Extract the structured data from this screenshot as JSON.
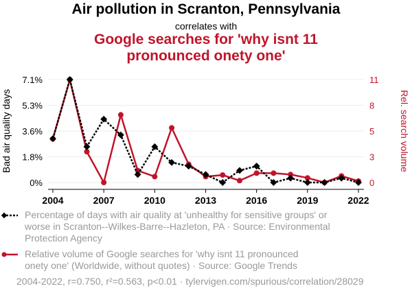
{
  "chart_data": {
    "type": "line",
    "title": "Air pollution in Scranton, Pennsylvania",
    "subtitle": "correlates with",
    "title2": "Google searches for 'why isnt 11 pronounced onety one'",
    "x": [
      2004,
      2005,
      2006,
      2007,
      2008,
      2009,
      2010,
      2011,
      2012,
      2013,
      2014,
      2015,
      2016,
      2017,
      2018,
      2019,
      2020,
      2021,
      2022
    ],
    "x_ticks": [
      "2004",
      "2007",
      "2010",
      "2013",
      "2016",
      "2019",
      "2022"
    ],
    "ylabel_left": "Bad air quality days",
    "ylabel_right": "Rel. search volume",
    "yticks_left": [
      "7.1%",
      "5.3%",
      "3.6%",
      "1.8%",
      "0%"
    ],
    "yticks_right": [
      "11",
      "8",
      "5",
      "3",
      "0"
    ],
    "ylim_left": [
      0,
      7.1
    ],
    "ylim_right": [
      0,
      11
    ],
    "grid": true,
    "series": [
      {
        "name": "Percentage of days with air quality at 'unhealthy for sensitive groups' or worse in Scranton--Wilkes-Barre--Hazleton, PA · Source: Environmental Protection Agency",
        "axis": "left",
        "color": "#000000",
        "values": [
          3.02,
          7.1,
          2.47,
          4.37,
          3.28,
          0.55,
          2.47,
          1.38,
          1.13,
          0.55,
          0,
          0.83,
          1.13,
          0,
          0.3,
          0,
          0,
          0.3,
          0
        ]
      },
      {
        "name": "Relative volume of Google searches for 'why isnt 11 pronounced onety one' (Worldwide, without quotes) · Source: Google Trends",
        "axis": "right",
        "color": "#c0142b",
        "values": [
          4.67,
          11,
          3.29,
          0,
          7.23,
          1.27,
          0.63,
          5.84,
          1.95,
          0.63,
          0.8,
          0.2,
          1,
          1,
          0.85,
          0.49,
          0,
          0.7,
          0.15
        ]
      }
    ],
    "footer": "2004-2022, r=0.750, r²=0.563, p<0.01 · tylervigen.com/spurious/correlation/28029"
  }
}
